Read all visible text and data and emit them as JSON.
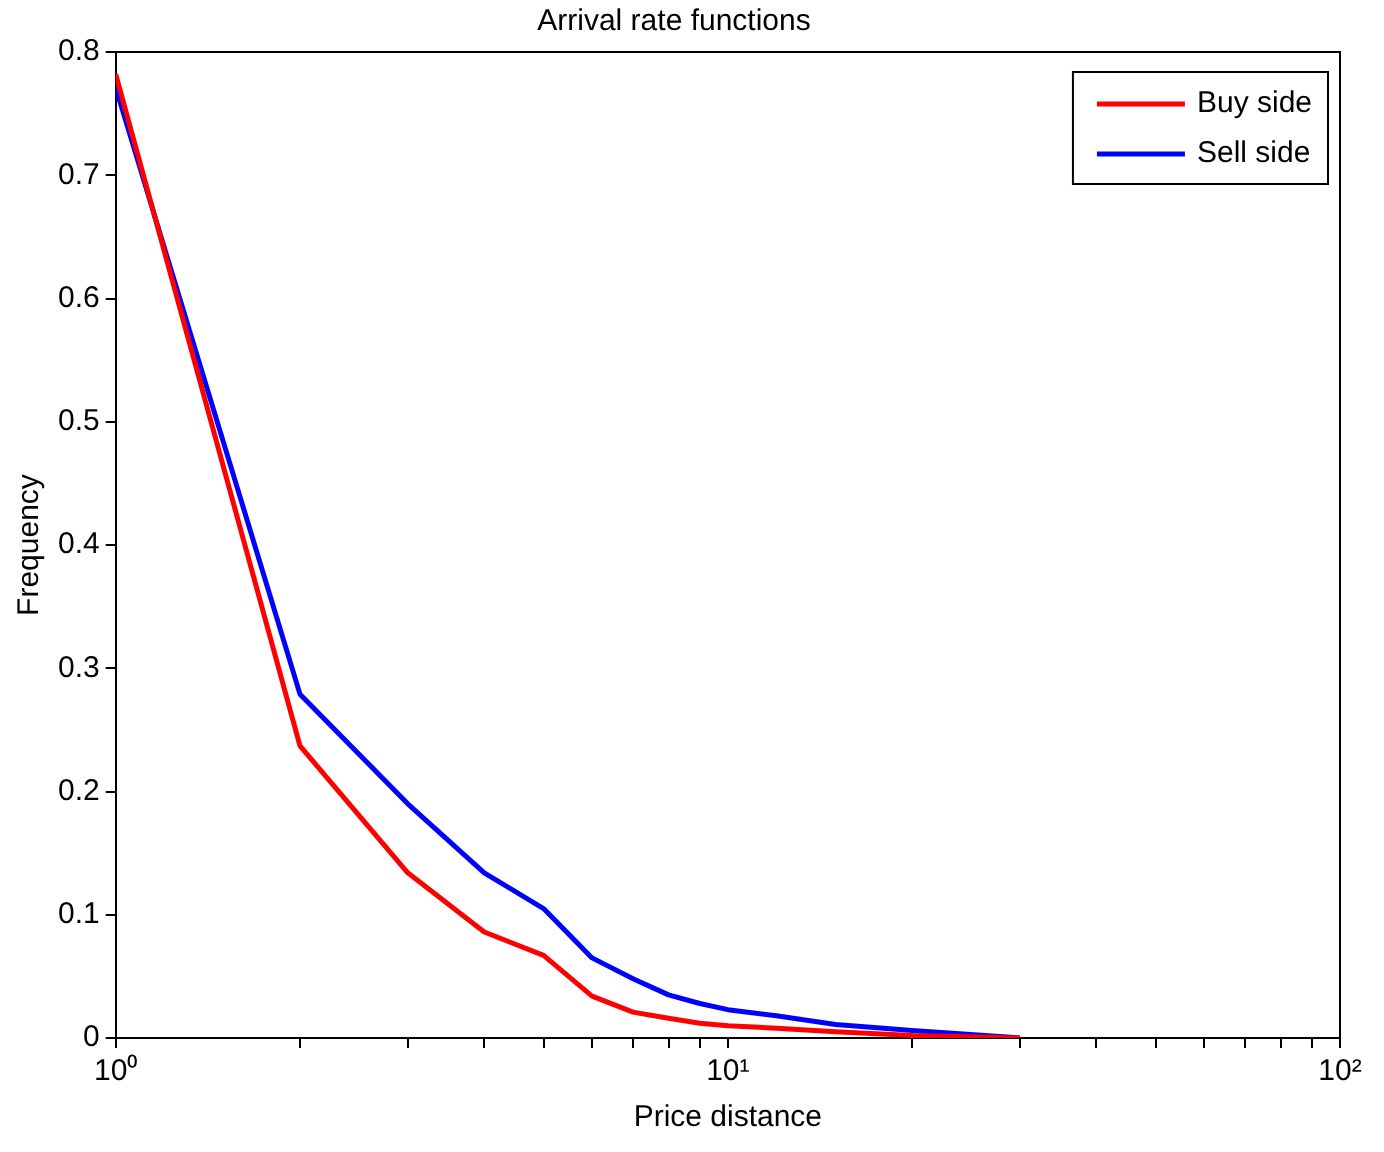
{
  "chart_data": {
    "type": "line",
    "title": "Arrival rate functions",
    "xlabel": "Price distance",
    "ylabel": "Frequency",
    "x": [
      1,
      2,
      3,
      4,
      5,
      6,
      7,
      8,
      9,
      10,
      12,
      15,
      20,
      30
    ],
    "series": [
      {
        "name": "Buy side",
        "color": "#ff0000",
        "values": [
          0.782,
          0.237,
          0.134,
          0.086,
          0.067,
          0.034,
          0.021,
          0.016,
          0.012,
          0.01,
          0.008,
          0.005,
          0.002,
          0
        ]
      },
      {
        "name": "Sell side",
        "color": "#0000ff",
        "values": [
          0.771,
          0.279,
          0.19,
          0.134,
          0.105,
          0.065,
          0.048,
          0.035,
          0.028,
          0.023,
          0.018,
          0.011,
          0.006,
          0
        ]
      }
    ],
    "log": "x",
    "xlim": [
      1,
      100
    ],
    "xticks": [
      {
        "value": 1,
        "label": "10⁰"
      },
      {
        "value": 2,
        "label": null
      },
      {
        "value": 3,
        "label": null
      },
      {
        "value": 4,
        "label": null
      },
      {
        "value": 5,
        "label": null
      },
      {
        "value": 6,
        "label": null
      },
      {
        "value": 7,
        "label": null
      },
      {
        "value": 8,
        "label": null
      },
      {
        "value": 9,
        "label": null
      },
      {
        "value": 10,
        "label": "10¹"
      },
      {
        "value": 20,
        "label": null
      },
      {
        "value": 30,
        "label": null
      },
      {
        "value": 40,
        "label": null
      },
      {
        "value": 50,
        "label": null
      },
      {
        "value": 60,
        "label": null
      },
      {
        "value": 70,
        "label": null
      },
      {
        "value": 80,
        "label": null
      },
      {
        "value": 90,
        "label": null
      },
      {
        "value": 100,
        "label": "10²"
      }
    ],
    "ylim": [
      0,
      0.8
    ],
    "yticks": [
      0,
      0.1,
      0.2,
      0.3,
      0.4,
      0.5,
      0.6,
      0.7,
      0.8
    ],
    "grid": false,
    "legend": "top right",
    "marker": "none",
    "line_style": "solid"
  }
}
